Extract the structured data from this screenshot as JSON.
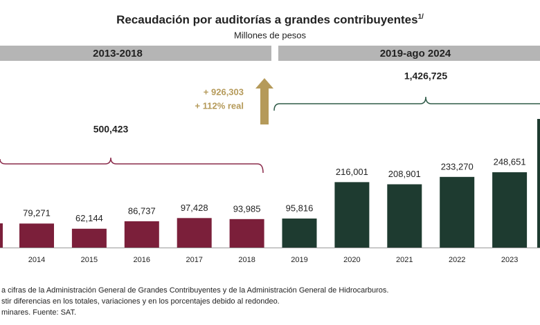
{
  "chart_data": {
    "type": "bar",
    "title": "Recaudación por auditorías a grandes contribuyentes",
    "title_note": "1/",
    "subtitle": "Millones de pesos",
    "periods": [
      "2013-2018",
      "2019-ago 2024"
    ],
    "categories": [
      "2014",
      "2015",
      "2016",
      "2017",
      "2018",
      "2019",
      "2020",
      "2021",
      "2022",
      "2023"
    ],
    "values": [
      79271,
      62144,
      86737,
      97428,
      93985,
      95816,
      216001,
      208901,
      233270,
      248651
    ],
    "value_labels": [
      "79,271",
      "62,144",
      "86,737",
      "97,428",
      "93,985",
      "95,816",
      "216,001",
      "208,901",
      "233,270",
      "248,651"
    ],
    "colors": [
      "#7b1f3a",
      "#7b1f3a",
      "#7b1f3a",
      "#7b1f3a",
      "#7b1f3a",
      "#1e3b30",
      "#1e3b30",
      "#1e3b30",
      "#1e3b30",
      "#1e3b30"
    ],
    "ylim": [
      0,
      500000
    ],
    "annotations": {
      "total_1": "500,423",
      "total_2": "1,426,725",
      "increase": "+ 926,303",
      "increase_real": "+ 112% real"
    },
    "footnotes": [
      "a cifras de la Administración General de Grandes Contribuyentes y de la Administración General de Hidrocarburos.",
      "stir diferencias en los totales, variaciones y en los porcentajes debido al redondeo.",
      "minares. Fuente: SAT."
    ]
  }
}
